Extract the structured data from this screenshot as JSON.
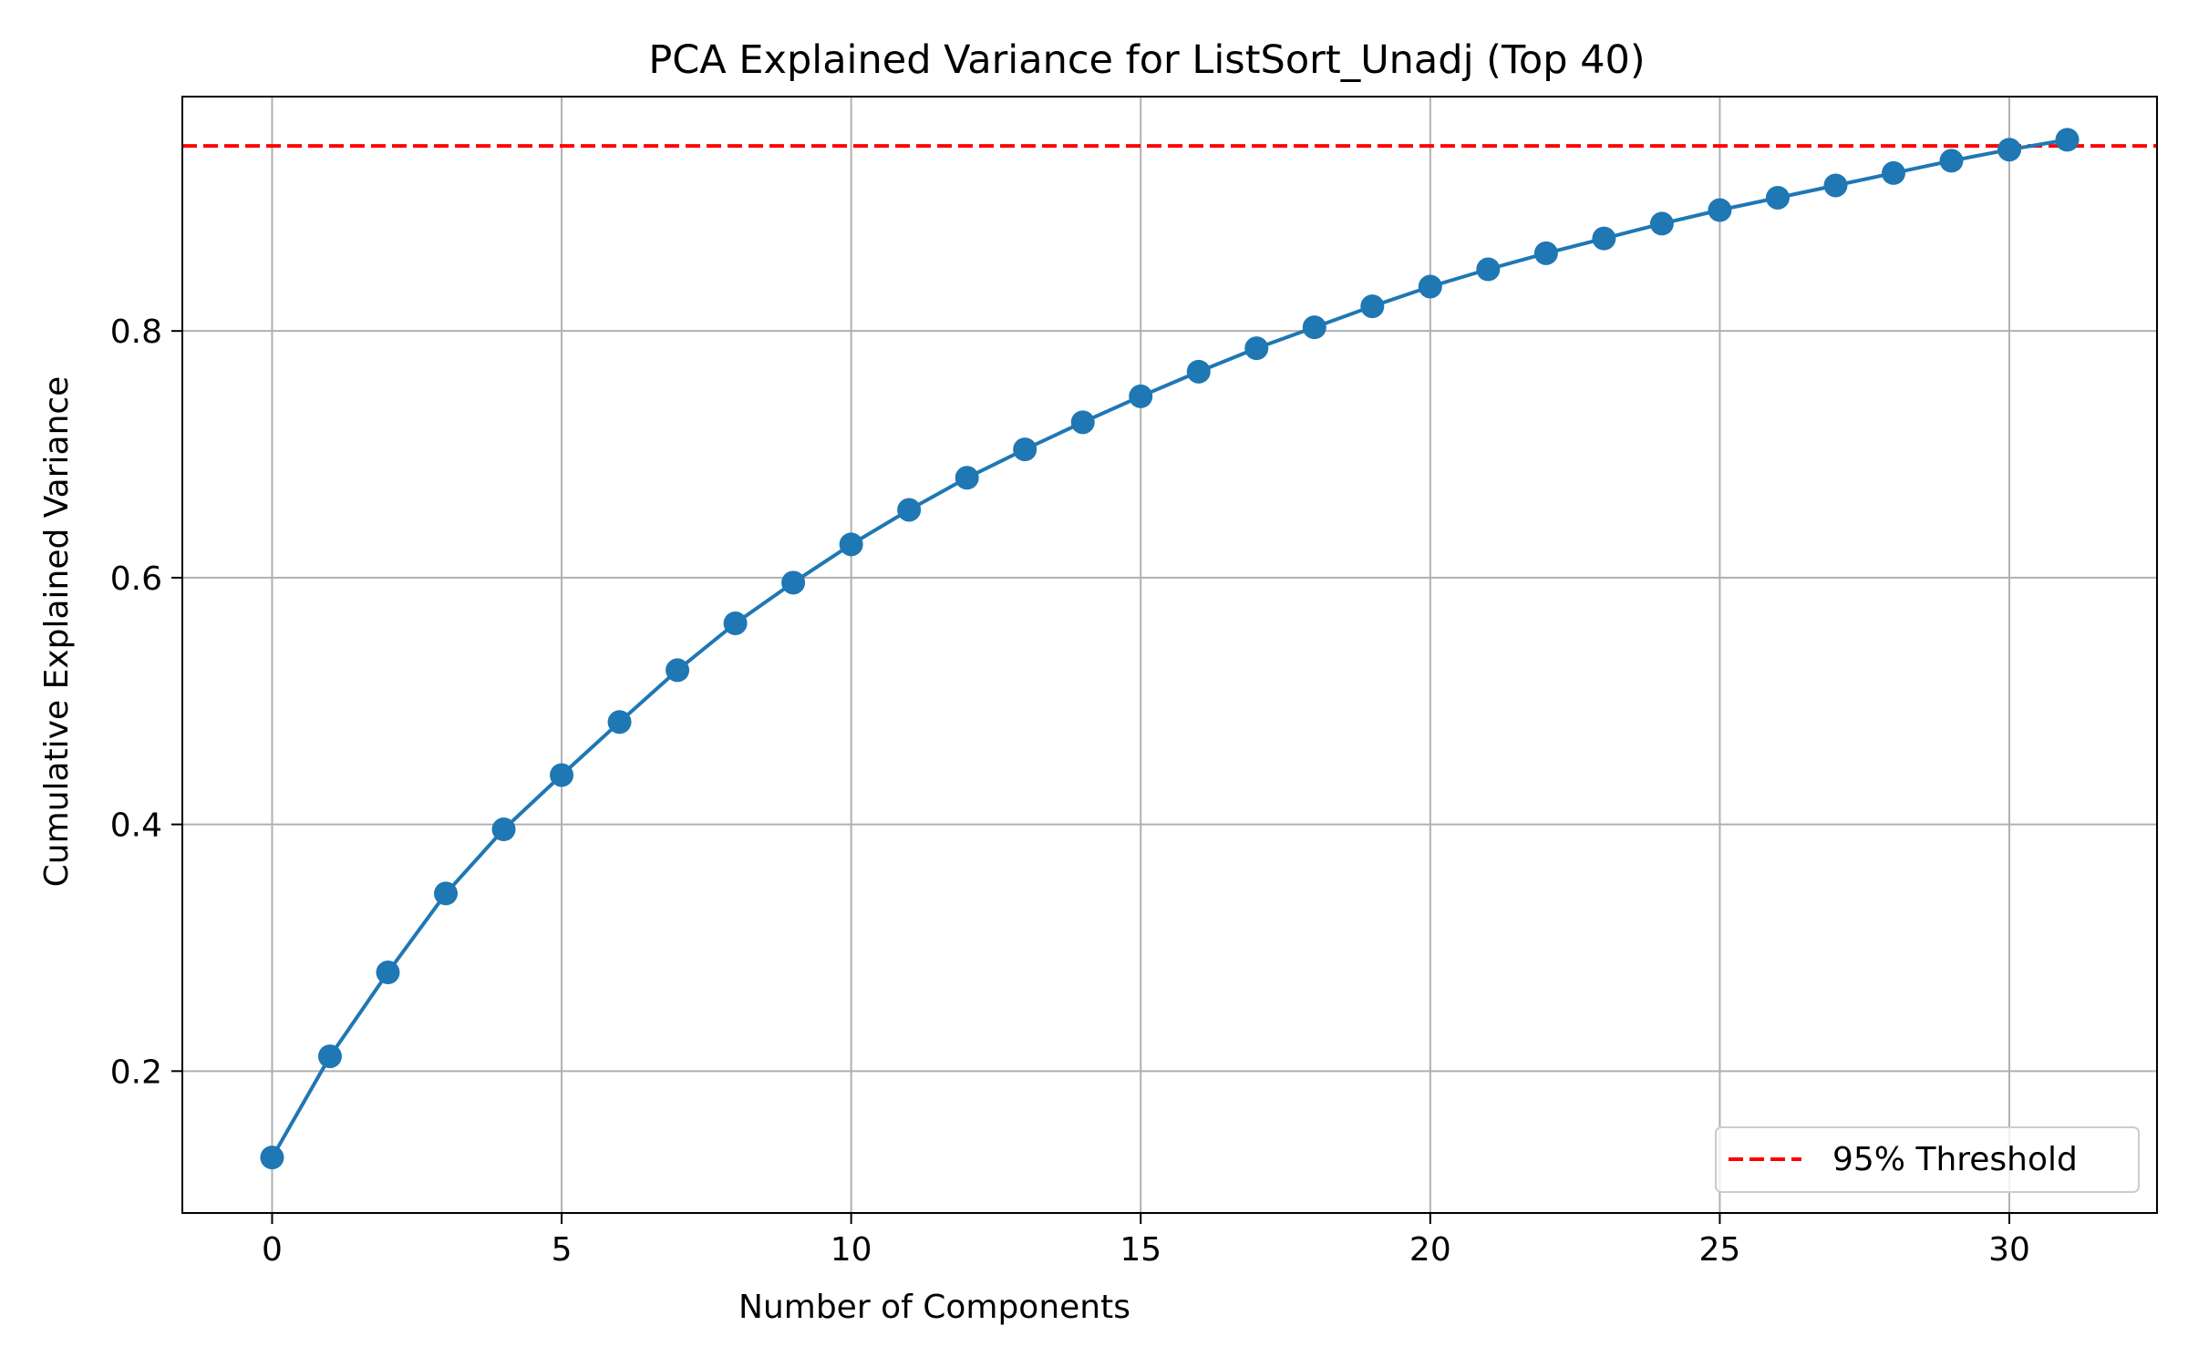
{
  "chart_data": {
    "type": "line",
    "title": "PCA Explained Variance for ListSort_Unadj (Top 40)",
    "xlabel": "Number of Components",
    "ylabel": "Cumulative Explained Variance",
    "xlim": [
      -1.55,
      32.55
    ],
    "ylim": [
      0.085,
      0.99
    ],
    "xticks": [
      0,
      5,
      10,
      15,
      20,
      25,
      30
    ],
    "yticks": [
      0.2,
      0.4,
      0.6,
      0.8
    ],
    "xtick_labels": [
      "0",
      "5",
      "10",
      "15",
      "20",
      "25",
      "30"
    ],
    "ytick_labels": [
      "0.2",
      "0.4",
      "0.6",
      "0.8"
    ],
    "grid": true,
    "legend_position": "lower-right",
    "series": [
      {
        "color": "#1f77b4",
        "marker": "circle",
        "x": [
          0,
          1,
          2,
          3,
          4,
          5,
          6,
          7,
          8,
          9,
          10,
          11,
          12,
          13,
          14,
          15,
          16,
          17,
          18,
          19,
          20,
          21,
          22,
          23,
          24,
          25,
          26,
          27,
          28,
          29,
          30,
          31
        ],
        "y": [
          0.13,
          0.212,
          0.28,
          0.344,
          0.396,
          0.44,
          0.483,
          0.525,
          0.563,
          0.596,
          0.627,
          0.655,
          0.681,
          0.704,
          0.726,
          0.747,
          0.767,
          0.786,
          0.803,
          0.82,
          0.836,
          0.85,
          0.863,
          0.875,
          0.887,
          0.898,
          0.908,
          0.918,
          0.928,
          0.938,
          0.947,
          0.955
        ]
      }
    ],
    "reference_lines": [
      {
        "name": "95% Threshold",
        "y": 0.95,
        "color": "#ff0000",
        "style": "dashed"
      }
    ]
  }
}
